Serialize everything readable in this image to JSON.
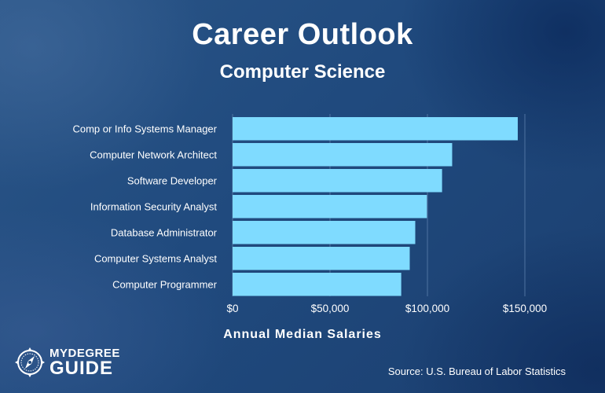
{
  "header": {
    "title": "Career Outlook",
    "subtitle": "Computer Science"
  },
  "chart_data": {
    "type": "bar",
    "orientation": "horizontal",
    "categories": [
      "Comp or Info Systems Manager",
      "Computer Network Architect",
      "Software Developer",
      "Information Security Analyst",
      "Database Administrator",
      "Computer Systems Analyst",
      "Computer Programmer"
    ],
    "values": [
      146360,
      112690,
      107510,
      99730,
      93750,
      90920,
      86550
    ],
    "xlabel": "Annual Median Salaries",
    "ylabel": "",
    "xlim": [
      0,
      150000
    ],
    "xticks": [
      0,
      50000,
      100000,
      150000
    ],
    "xtick_labels": [
      "$0",
      "$50,000",
      "$100,000",
      "$150,000"
    ],
    "grid": true,
    "bar_color": "#7fdbff",
    "grid_color": "#4f73a1"
  },
  "branding": {
    "logo_line1": "MYDEGREE",
    "logo_line2": "GUIDE",
    "logo_icon": "compass-icon"
  },
  "footer": {
    "source": "Source: U.S. Bureau of Labor Statistics"
  }
}
